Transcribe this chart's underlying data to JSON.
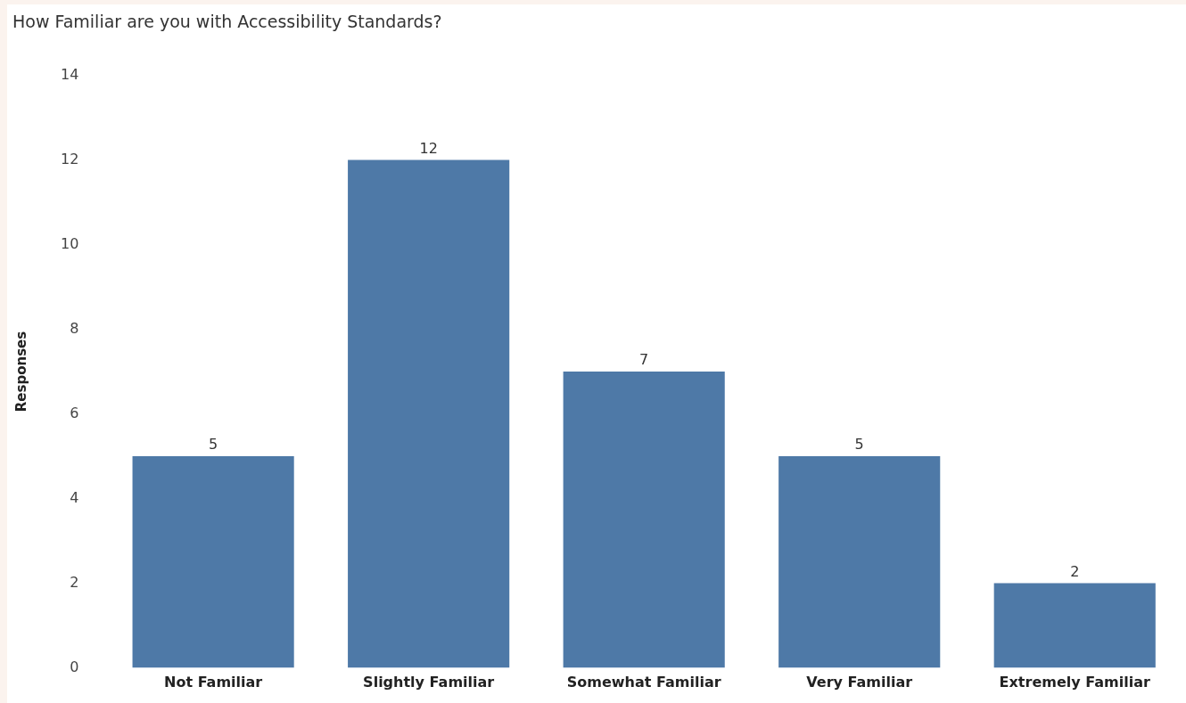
{
  "chart_data": {
    "type": "bar",
    "title": "How Familiar are you with Accessibility Standards?",
    "ylabel": "Responses",
    "categories": [
      "Not Familiar",
      "Slightly Familiar",
      "Somewhat Familiar",
      "Very Familiar",
      "Extremely Familiar"
    ],
    "values": [
      5,
      12,
      7,
      5,
      2
    ],
    "color": "#4e79a7",
    "ylim": [
      0,
      14
    ],
    "yticks": [
      0,
      2,
      4,
      6,
      8,
      10,
      12,
      14
    ],
    "grid": false,
    "data_labels": true
  }
}
